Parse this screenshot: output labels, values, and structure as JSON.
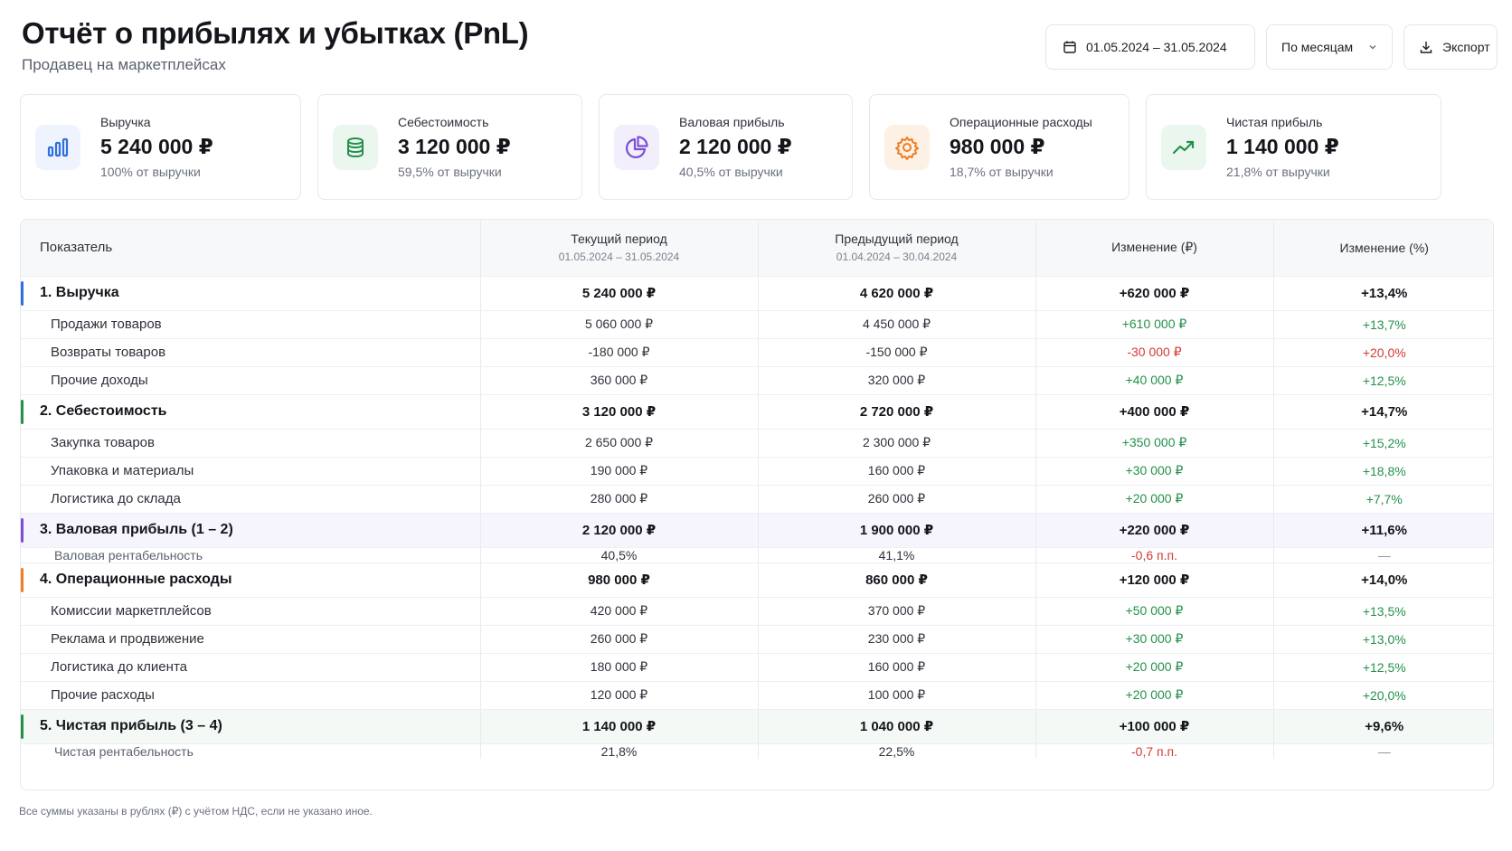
{
  "header": {
    "title": "Отчёт о прибылях и убытках (PnL)",
    "subtitle": "Продавец на маркетплейсах",
    "date_range": "01.05.2024 – 31.05.2024",
    "period": "По месяцам",
    "export": "Экспорт"
  },
  "cards": [
    {
      "label": "Выручка",
      "value": "5 240 000 ₽",
      "sub": "100% от выручки",
      "icon": "bar-chart-icon",
      "color": "#2f6fe0",
      "bg": "#eef3fd"
    },
    {
      "label": "Себестоимость",
      "value": "3 120 000 ₽",
      "sub": "59,5% от выручки",
      "icon": "coins-icon",
      "color": "#23914a",
      "bg": "#ebf6ee"
    },
    {
      "label": "Валовая прибыль",
      "value": "2 120 000 ₽",
      "sub": "40,5% от выручки",
      "icon": "pie-chart-icon",
      "color": "#7b4fd6",
      "bg": "#f2eefc"
    },
    {
      "label": "Операционные расходы",
      "value": "980 000 ₽",
      "sub": "18,7% от выручки",
      "icon": "gear-icon",
      "color": "#ef7d22",
      "bg": "#fdf1e6"
    },
    {
      "label": "Чистая прибыль",
      "value": "1 140 000 ₽",
      "sub": "21,8% от выручки",
      "icon": "trend-up-icon",
      "color": "#23914a",
      "bg": "#ebf6ee"
    }
  ],
  "table": {
    "headers": {
      "indicator": "Показатель",
      "current": "Текущий период",
      "current_range": "01.05.2024 – 31.05.2024",
      "previous": "Предыдущий период",
      "previous_range": "01.04.2024 – 30.04.2024",
      "change_abs": "Изменение (₽)",
      "change_pct": "Изменение (%)"
    },
    "rows": [
      {
        "type": "group",
        "accent": "#2f6fe0",
        "name": "1. Выручка",
        "cur": "5 240 000 ₽",
        "prev": "4 620 000 ₽",
        "abs": "+620 000 ₽",
        "pct": "+13,4%",
        "abs_tone": "pos",
        "pct_tone": "pos"
      },
      {
        "type": "item",
        "name": "Продажи товаров",
        "cur": "5 060 000 ₽",
        "prev": "4 450 000 ₽",
        "abs": "+610 000 ₽",
        "pct": "+13,7%",
        "abs_tone": "pos",
        "pct_tone": "pos"
      },
      {
        "type": "item",
        "name": "Возвраты товаров",
        "cur": "-180 000 ₽",
        "prev": "-150 000 ₽",
        "abs": "-30 000 ₽",
        "pct": "+20,0%",
        "abs_tone": "neg",
        "pct_tone": "neg"
      },
      {
        "type": "item",
        "name": "Прочие доходы",
        "cur": "360 000 ₽",
        "prev": "320 000 ₽",
        "abs": "+40 000 ₽",
        "pct": "+12,5%",
        "abs_tone": "pos",
        "pct_tone": "pos"
      },
      {
        "type": "group",
        "accent": "#23914a",
        "name": "2. Себестоимость",
        "cur": "3 120 000 ₽",
        "prev": "2 720 000 ₽",
        "abs": "+400 000 ₽",
        "pct": "+14,7%",
        "abs_tone": "pos",
        "pct_tone": "pos"
      },
      {
        "type": "item",
        "name": "Закупка товаров",
        "cur": "2 650 000 ₽",
        "prev": "2 300 000 ₽",
        "abs": "+350 000 ₽",
        "pct": "+15,2%",
        "abs_tone": "pos",
        "pct_tone": "pos"
      },
      {
        "type": "item",
        "name": "Упаковка и материалы",
        "cur": "190 000 ₽",
        "prev": "160 000 ₽",
        "abs": "+30 000 ₽",
        "pct": "+18,8%",
        "abs_tone": "pos",
        "pct_tone": "pos"
      },
      {
        "type": "item",
        "name": "Логистика до склада",
        "cur": "280 000 ₽",
        "prev": "260 000 ₽",
        "abs": "+20 000 ₽",
        "pct": "+7,7%",
        "abs_tone": "pos",
        "pct_tone": "pos"
      },
      {
        "type": "group",
        "accent": "#7b4fd6",
        "hl": "hl",
        "name": "3. Валовая прибыль (1 – 2)",
        "cur": "2 120 000 ₽",
        "prev": "1 900 000 ₽",
        "abs": "+220 000 ₽",
        "pct": "+11,6%",
        "abs_tone": "pos",
        "pct_tone": "pos"
      },
      {
        "type": "ratio",
        "name": "Валовая рентабельность",
        "cur": "40,5%",
        "prev": "41,1%",
        "abs": "-0,6 п.п.",
        "pct": "—",
        "abs_tone": "neg",
        "pct_tone": "dash"
      },
      {
        "type": "group",
        "accent": "#ef7d22",
        "name": "4. Операционные расходы",
        "cur": "980 000 ₽",
        "prev": "860 000 ₽",
        "abs": "+120 000 ₽",
        "pct": "+14,0%",
        "abs_tone": "pos",
        "pct_tone": "pos"
      },
      {
        "type": "item",
        "name": "Комиссии маркетплейсов",
        "cur": "420 000 ₽",
        "prev": "370 000 ₽",
        "abs": "+50 000 ₽",
        "pct": "+13,5%",
        "abs_tone": "pos",
        "pct_tone": "pos"
      },
      {
        "type": "item",
        "name": "Реклама и продвижение",
        "cur": "260 000 ₽",
        "prev": "230 000 ₽",
        "abs": "+30 000 ₽",
        "pct": "+13,0%",
        "abs_tone": "pos",
        "pct_tone": "pos"
      },
      {
        "type": "item",
        "name": "Логистика до клиента",
        "cur": "180 000 ₽",
        "prev": "160 000 ₽",
        "abs": "+20 000 ₽",
        "pct": "+12,5%",
        "abs_tone": "pos",
        "pct_tone": "pos"
      },
      {
        "type": "item",
        "name": "Прочие расходы",
        "cur": "120 000 ₽",
        "prev": "100 000 ₽",
        "abs": "+20 000 ₽",
        "pct": "+20,0%",
        "abs_tone": "pos",
        "pct_tone": "pos"
      },
      {
        "type": "group",
        "accent": "#23914a",
        "hl": "hl2",
        "name": "5. Чистая прибыль (3 – 4)",
        "cur": "1 140 000 ₽",
        "prev": "1 040 000 ₽",
        "abs": "+100 000 ₽",
        "pct": "+9,6%",
        "abs_tone": "pos",
        "pct_tone": "pos"
      },
      {
        "type": "ratio",
        "name": "Чистая рентабельность",
        "cur": "21,8%",
        "prev": "22,5%",
        "abs": "-0,7 п.п.",
        "pct": "—",
        "abs_tone": "neg",
        "pct_tone": "dash"
      }
    ]
  },
  "footnote": "Все суммы указаны в рублях (₽) с учётом НДС, если не указано иное."
}
